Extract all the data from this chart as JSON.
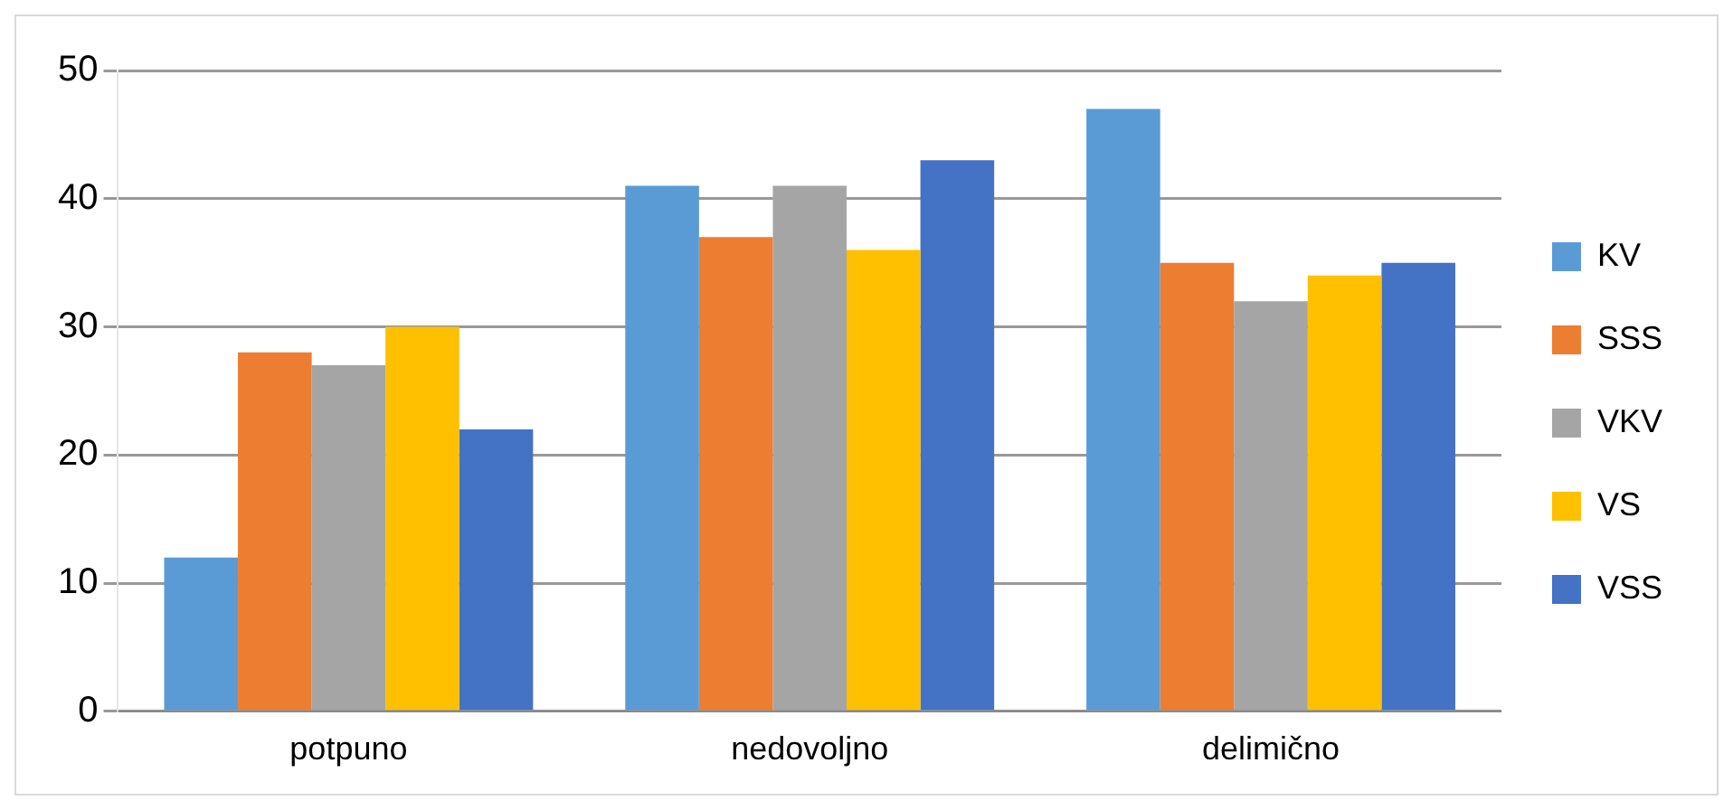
{
  "chart_data": {
    "type": "bar",
    "categories": [
      "potpuno",
      "nedovoljno",
      "delimično"
    ],
    "series": [
      {
        "name": "KV",
        "color": "#5b9bd5",
        "values": [
          12,
          41,
          47
        ]
      },
      {
        "name": "SSS",
        "color": "#ed7d31",
        "values": [
          28,
          37,
          35
        ]
      },
      {
        "name": "VKV",
        "color": "#a5a5a5",
        "values": [
          27,
          41,
          32
        ]
      },
      {
        "name": "VS",
        "color": "#ffc000",
        "values": [
          30,
          36,
          34
        ]
      },
      {
        "name": "VSS",
        "color": "#4472c4",
        "values": [
          22,
          43,
          35
        ]
      }
    ],
    "ylim": [
      0,
      50
    ],
    "yticks": [
      0,
      10,
      20,
      30,
      40,
      50
    ],
    "grid": "y",
    "legend": "right"
  }
}
